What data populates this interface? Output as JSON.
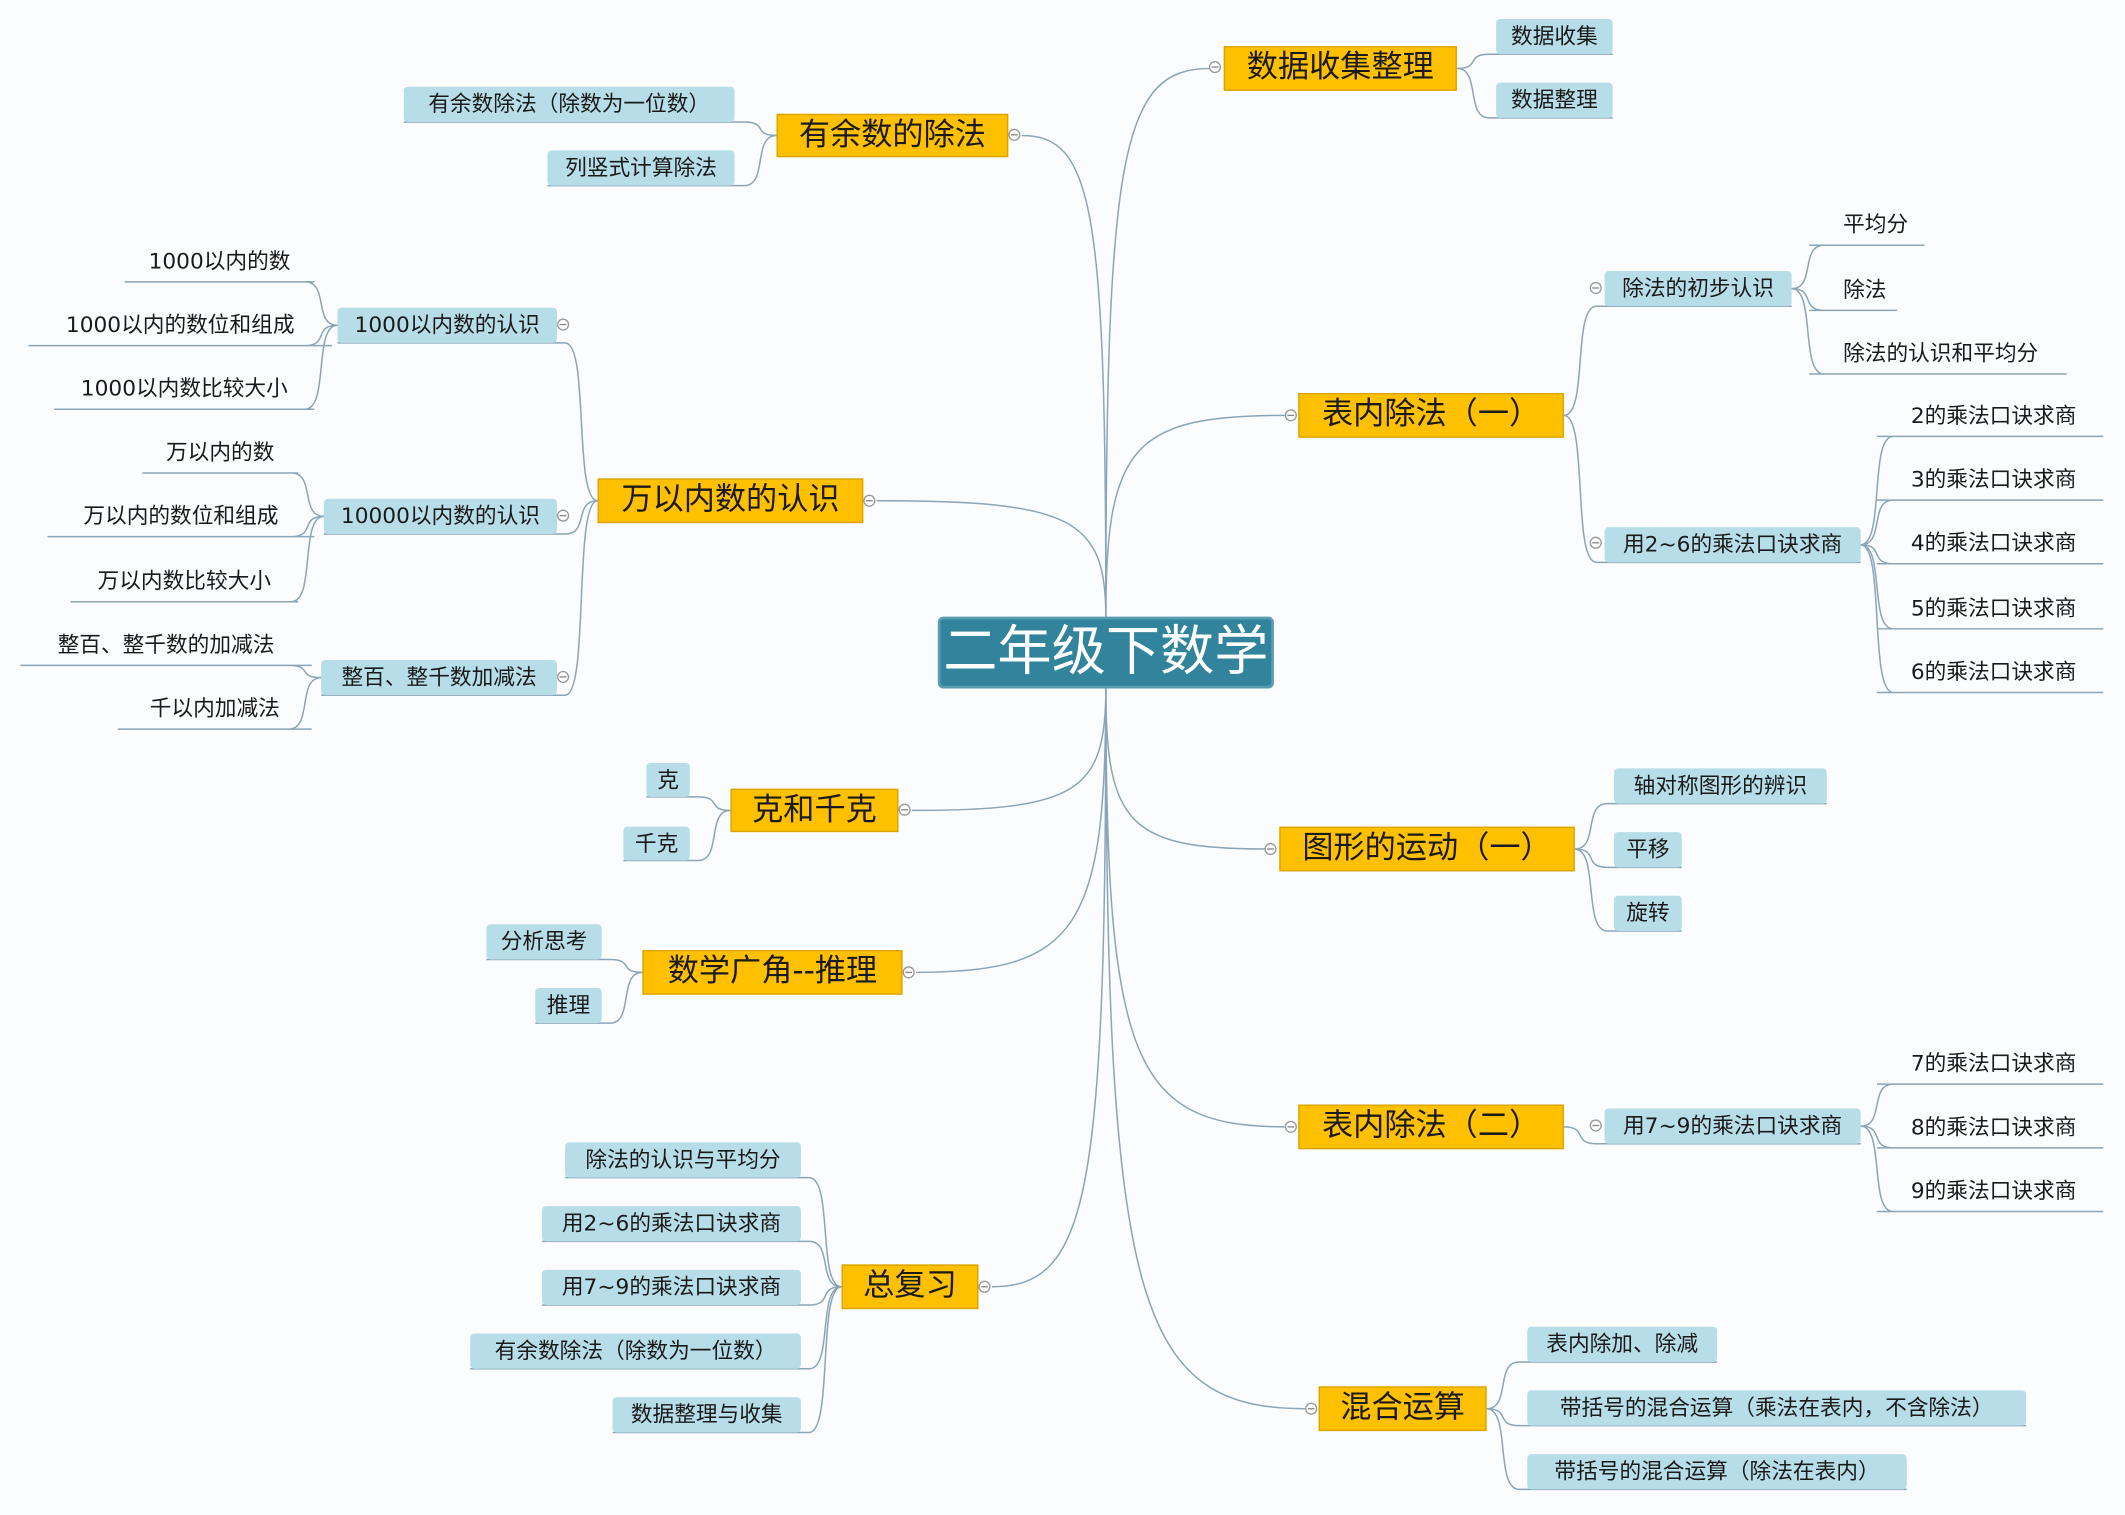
{
  "root": {
    "title": "二年级下数学"
  },
  "colors": {
    "root": "#31849b",
    "main_topic": "#ffc000",
    "subtopic": "#b7dde8",
    "connector": "#8aa4b8"
  },
  "branches": [
    {
      "label": "有余数的除法",
      "children": [
        {
          "label": "有余数除法（除数为一位数）"
        },
        {
          "label": "列竖式计算除法"
        }
      ]
    },
    {
      "label": "万以内数的认识",
      "children": [
        {
          "label": "1000以内数的认识",
          "children": [
            {
              "label": "1000以内的数"
            },
            {
              "label": "1000以内的数位和组成"
            },
            {
              "label": "1000以内数比较大小"
            }
          ]
        },
        {
          "label": "10000以内数的认识",
          "children": [
            {
              "label": "万以内的数"
            },
            {
              "label": "万以内的数位和组成"
            },
            {
              "label": "万以内数比较大小"
            }
          ]
        },
        {
          "label": "整百、整千数加减法",
          "children": [
            {
              "label": "整百、整千数的加减法"
            },
            {
              "label": "千以内加减法"
            }
          ]
        }
      ]
    },
    {
      "label": "克和千克",
      "children": [
        {
          "label": "克"
        },
        {
          "label": "千克"
        }
      ]
    },
    {
      "label": "数学广角--推理",
      "children": [
        {
          "label": "分析思考"
        },
        {
          "label": "推理"
        }
      ]
    },
    {
      "label": "总复习",
      "children": [
        {
          "label": "除法的认识与平均分"
        },
        {
          "label": "用2~6的乘法口诀求商"
        },
        {
          "label": "用7~9的乘法口诀求商"
        },
        {
          "label": "有余数除法（除数为一位数）"
        },
        {
          "label": "数据整理与收集"
        }
      ]
    },
    {
      "label": "数据收集整理",
      "children": [
        {
          "label": "数据收集"
        },
        {
          "label": "数据整理"
        }
      ]
    },
    {
      "label": "表内除法（一）",
      "children": [
        {
          "label": "除法的初步认识",
          "children": [
            {
              "label": "平均分"
            },
            {
              "label": "除法"
            },
            {
              "label": "除法的认识和平均分"
            }
          ]
        },
        {
          "label": "用2~6的乘法口诀求商",
          "children": [
            {
              "label": "2的乘法口诀求商"
            },
            {
              "label": "3的乘法口诀求商"
            },
            {
              "label": "4的乘法口诀求商"
            },
            {
              "label": "5的乘法口诀求商"
            },
            {
              "label": "6的乘法口诀求商"
            }
          ]
        }
      ]
    },
    {
      "label": "图形的运动（一）",
      "children": [
        {
          "label": "轴对称图形的辨识"
        },
        {
          "label": "平移"
        },
        {
          "label": "旋转"
        }
      ]
    },
    {
      "label": "表内除法（二）",
      "children": [
        {
          "label": "用7~9的乘法口诀求商",
          "children": [
            {
              "label": "7的乘法口诀求商"
            },
            {
              "label": "8的乘法口诀求商"
            },
            {
              "label": "9的乘法口诀求商"
            }
          ]
        }
      ]
    },
    {
      "label": "混合运算",
      "children": [
        {
          "label": "表内除加、除减"
        },
        {
          "label": "带括号的混合运算（乘法在表内，不含除法）"
        },
        {
          "label": "带括号的混合运算（除法在表内）"
        }
      ]
    }
  ]
}
